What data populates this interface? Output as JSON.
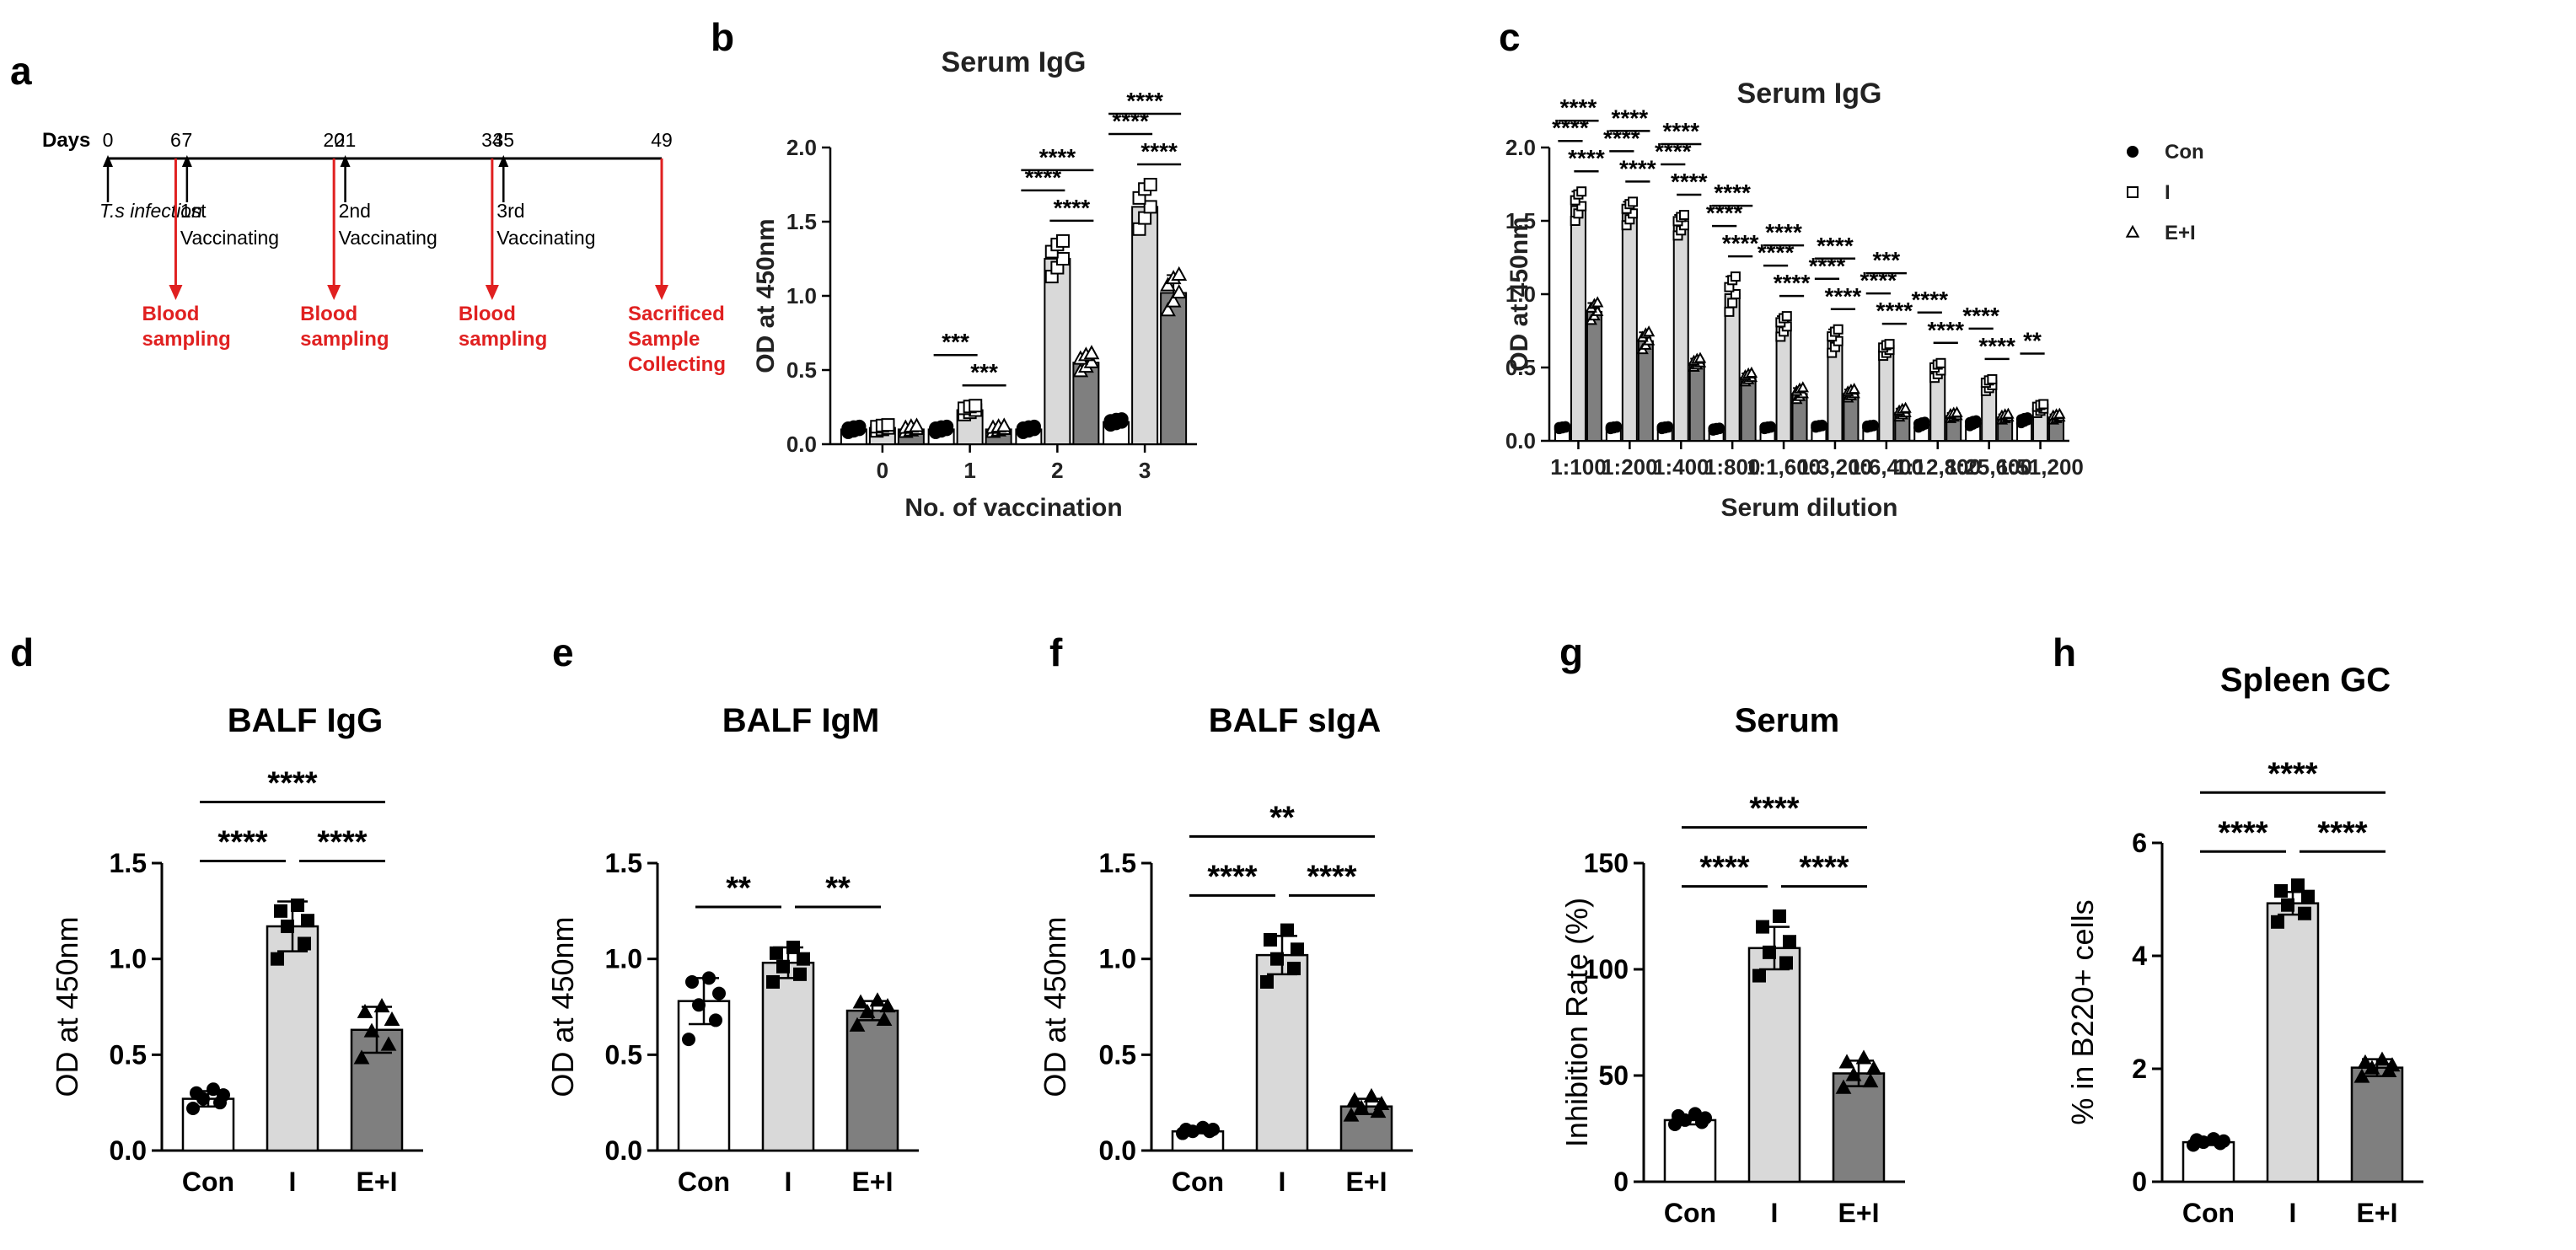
{
  "colors": {
    "con": "#ffffff",
    "i": "#d9d9d9",
    "ei": "#7f7f7f",
    "red": "#e02020",
    "ink": "#000000"
  },
  "panel_a": {
    "label": "a",
    "days_label": "Days",
    "days": [
      "0",
      "6",
      "7",
      "20",
      "21",
      "34",
      "35",
      "49"
    ],
    "day_values": [
      0,
      6,
      7,
      20,
      21,
      34,
      35,
      49
    ],
    "black_events": [
      {
        "day": 0,
        "lines": [
          "T.s infection"
        ]
      },
      {
        "day": 7,
        "lines": [
          "1st",
          "Vaccinating"
        ]
      },
      {
        "day": 21,
        "lines": [
          "2nd",
          "Vaccinating"
        ]
      },
      {
        "day": 35,
        "lines": [
          "3rd",
          "Vaccinating"
        ]
      }
    ],
    "red_events": [
      {
        "day": 6,
        "lines": [
          "Blood",
          "sampling"
        ]
      },
      {
        "day": 20,
        "lines": [
          "Blood",
          "sampling"
        ]
      },
      {
        "day": 34,
        "lines": [
          "Blood",
          "sampling"
        ]
      },
      {
        "day": 49,
        "lines": [
          "Sacrificed",
          "Sample",
          "Collecting"
        ]
      }
    ]
  },
  "chart_data": [
    {
      "panel": "b",
      "type": "bar",
      "title": "Serum IgG",
      "xlabel": "No. of vaccination",
      "ylabel": "OD at 450nm",
      "ylim": [
        0,
        2.0
      ],
      "yticks": [
        "0.0",
        "0.5",
        "1.0",
        "1.5",
        "2.0"
      ],
      "ytick_values": [
        0,
        0.5,
        1.0,
        1.5,
        2.0
      ],
      "categories": [
        "0",
        "1",
        "2",
        "3"
      ],
      "series": [
        {
          "name": "Con",
          "values": [
            0.1,
            0.1,
            0.1,
            0.15
          ],
          "err": [
            0.02,
            0.02,
            0.02,
            0.02
          ]
        },
        {
          "name": "I",
          "values": [
            0.11,
            0.23,
            1.25,
            1.6
          ],
          "err": [
            0.02,
            0.03,
            0.12,
            0.15
          ]
        },
        {
          "name": "E+I",
          "values": [
            0.1,
            0.1,
            0.55,
            1.02
          ],
          "err": [
            0.02,
            0.02,
            0.06,
            0.12
          ]
        }
      ],
      "significance": [
        {
          "cat": 1,
          "from": 0,
          "to": 1,
          "label": "***"
        },
        {
          "cat": 1,
          "from": 1,
          "to": 2,
          "label": "***"
        },
        {
          "cat": 2,
          "from": 0,
          "to": 1,
          "label": "****"
        },
        {
          "cat": 2,
          "from": 1,
          "to": 2,
          "label": "****"
        },
        {
          "cat": 2,
          "from": 0,
          "to": 2,
          "label": "****"
        },
        {
          "cat": 3,
          "from": 0,
          "to": 1,
          "label": "****"
        },
        {
          "cat": 3,
          "from": 1,
          "to": 2,
          "label": "****"
        },
        {
          "cat": 3,
          "from": 0,
          "to": 2,
          "label": "****"
        }
      ]
    },
    {
      "panel": "c",
      "type": "bar",
      "title": "Serum IgG",
      "xlabel": "Serum dilution",
      "ylabel": "OD at 450nm",
      "ylim": [
        0,
        2.0
      ],
      "yticks": [
        "0.0",
        "0.5",
        "1.0",
        "1.5",
        "2.0"
      ],
      "ytick_values": [
        0,
        0.5,
        1.0,
        1.5,
        2.0
      ],
      "categories": [
        "1:100",
        "1:200",
        "1:400",
        "1:800",
        "1:1,600",
        "1:3,200",
        "1:6,400",
        "1:12,800",
        "1:25,600",
        "1:51,200"
      ],
      "series": [
        {
          "name": "Con",
          "values": [
            0.09,
            0.09,
            0.09,
            0.08,
            0.09,
            0.1,
            0.1,
            0.11,
            0.12,
            0.14
          ],
          "err": [
            0.01,
            0.01,
            0.01,
            0.01,
            0.01,
            0.01,
            0.01,
            0.02,
            0.02,
            0.02
          ]
        },
        {
          "name": "I",
          "values": [
            1.6,
            1.55,
            1.47,
            1.0,
            0.78,
            0.68,
            0.62,
            0.48,
            0.38,
            0.22
          ],
          "err": [
            0.1,
            0.08,
            0.07,
            0.12,
            0.07,
            0.08,
            0.04,
            0.05,
            0.04,
            0.03
          ]
        },
        {
          "name": "E+I",
          "values": [
            0.88,
            0.68,
            0.53,
            0.43,
            0.32,
            0.32,
            0.19,
            0.17,
            0.16,
            0.16
          ],
          "err": [
            0.06,
            0.06,
            0.03,
            0.03,
            0.04,
            0.03,
            0.03,
            0.02,
            0.02,
            0.02
          ]
        }
      ],
      "legend": [
        "Con",
        "I",
        "E+I"
      ],
      "legend_position": "top-right",
      "significance": [
        {
          "cat": 0,
          "from": 0,
          "to": 1,
          "label": "****"
        },
        {
          "cat": 0,
          "from": 1,
          "to": 2,
          "label": "****"
        },
        {
          "cat": 0,
          "from": 0,
          "to": 2,
          "label": "****"
        },
        {
          "cat": 1,
          "from": 0,
          "to": 1,
          "label": "****"
        },
        {
          "cat": 1,
          "from": 1,
          "to": 2,
          "label": "****"
        },
        {
          "cat": 1,
          "from": 0,
          "to": 2,
          "label": "****"
        },
        {
          "cat": 2,
          "from": 0,
          "to": 1,
          "label": "****"
        },
        {
          "cat": 2,
          "from": 1,
          "to": 2,
          "label": "****"
        },
        {
          "cat": 2,
          "from": 0,
          "to": 2,
          "label": "****"
        },
        {
          "cat": 3,
          "from": 0,
          "to": 1,
          "label": "****"
        },
        {
          "cat": 3,
          "from": 1,
          "to": 2,
          "label": "****"
        },
        {
          "cat": 3,
          "from": 0,
          "to": 2,
          "label": "****"
        },
        {
          "cat": 4,
          "from": 0,
          "to": 1,
          "label": "****"
        },
        {
          "cat": 4,
          "from": 1,
          "to": 2,
          "label": "****"
        },
        {
          "cat": 4,
          "from": 0,
          "to": 2,
          "label": "****"
        },
        {
          "cat": 5,
          "from": 0,
          "to": 1,
          "label": "****"
        },
        {
          "cat": 5,
          "from": 1,
          "to": 2,
          "label": "****"
        },
        {
          "cat": 5,
          "from": 0,
          "to": 2,
          "label": "****"
        },
        {
          "cat": 6,
          "from": 0,
          "to": 1,
          "label": "****"
        },
        {
          "cat": 6,
          "from": 1,
          "to": 2,
          "label": "****"
        },
        {
          "cat": 6,
          "from": 0,
          "to": 2,
          "label": "***"
        },
        {
          "cat": 7,
          "from": 0,
          "to": 1,
          "label": "****"
        },
        {
          "cat": 7,
          "from": 1,
          "to": 2,
          "label": "****"
        },
        {
          "cat": 8,
          "from": 0,
          "to": 1,
          "label": "****"
        },
        {
          "cat": 8,
          "from": 1,
          "to": 2,
          "label": "****"
        },
        {
          "cat": 9,
          "from": 0,
          "to": 1,
          "label": "**"
        }
      ]
    },
    {
      "panel": "d",
      "type": "bar",
      "title": "BALF IgG",
      "ylabel": "OD at 450nm",
      "ylim": [
        0,
        1.5
      ],
      "yticks": [
        "0.0",
        "0.5",
        "1.0",
        "1.5"
      ],
      "ytick_values": [
        0,
        0.5,
        1.0,
        1.5
      ],
      "categories": [
        "Con",
        "I",
        "E+I"
      ],
      "values": [
        0.27,
        1.17,
        0.63
      ],
      "err": [
        0.04,
        0.13,
        0.12
      ],
      "points": [
        [
          0.22,
          0.25,
          0.27,
          0.29,
          0.3,
          0.32
        ],
        [
          1.0,
          1.08,
          1.17,
          1.2,
          1.25,
          1.28
        ],
        [
          0.48,
          0.55,
          0.62,
          0.68,
          0.72,
          0.75
        ]
      ],
      "significance": [
        {
          "from": 0,
          "to": 1,
          "label": "****"
        },
        {
          "from": 1,
          "to": 2,
          "label": "****"
        },
        {
          "from": 0,
          "to": 2,
          "label": "****"
        }
      ]
    },
    {
      "panel": "e",
      "type": "bar",
      "title": "BALF IgM",
      "ylabel": "OD at 450nm",
      "ylim": [
        0,
        1.5
      ],
      "yticks": [
        "0.0",
        "0.5",
        "1.0",
        "1.5"
      ],
      "ytick_values": [
        0,
        0.5,
        1.0,
        1.5
      ],
      "categories": [
        "Con",
        "I",
        "E+I"
      ],
      "values": [
        0.78,
        0.98,
        0.73
      ],
      "err": [
        0.12,
        0.08,
        0.05
      ],
      "points": [
        [
          0.58,
          0.68,
          0.76,
          0.82,
          0.88,
          0.9
        ],
        [
          0.88,
          0.92,
          0.96,
          1.0,
          1.03,
          1.06
        ],
        [
          0.65,
          0.68,
          0.72,
          0.75,
          0.77,
          0.78
        ]
      ],
      "significance": [
        {
          "from": 0,
          "to": 1,
          "label": "**"
        },
        {
          "from": 1,
          "to": 2,
          "label": "**"
        }
      ]
    },
    {
      "panel": "f",
      "type": "bar",
      "title": "BALF sIgA",
      "ylabel": "OD at 450nm",
      "ylim": [
        0,
        1.5
      ],
      "yticks": [
        "0.0",
        "0.5",
        "1.0",
        "1.5"
      ],
      "ytick_values": [
        0,
        0.5,
        1.0,
        1.5
      ],
      "categories": [
        "Con",
        "I",
        "E+I"
      ],
      "values": [
        0.1,
        1.02,
        0.23
      ],
      "err": [
        0.01,
        0.1,
        0.04
      ],
      "points": [
        [
          0.09,
          0.1,
          0.1,
          0.11,
          0.11,
          0.12
        ],
        [
          0.88,
          0.95,
          1.0,
          1.05,
          1.1,
          1.15
        ],
        [
          0.18,
          0.2,
          0.22,
          0.24,
          0.26,
          0.28
        ]
      ],
      "significance": [
        {
          "from": 0,
          "to": 1,
          "label": "****"
        },
        {
          "from": 1,
          "to": 2,
          "label": "****"
        },
        {
          "from": 0,
          "to": 2,
          "label": "**"
        }
      ]
    },
    {
      "panel": "g",
      "type": "bar",
      "title": "Serum",
      "ylabel": "Inhibition Rate (%)",
      "ylim": [
        0,
        150
      ],
      "yticks": [
        "0",
        "50",
        "100",
        "150"
      ],
      "ytick_values": [
        0,
        50,
        100,
        150
      ],
      "categories": [
        "Con",
        "I",
        "E+I"
      ],
      "values": [
        29,
        110,
        51
      ],
      "err": [
        2,
        10,
        6
      ],
      "points": [
        [
          27,
          28,
          29,
          30,
          31,
          32
        ],
        [
          97,
          103,
          108,
          113,
          120,
          125
        ],
        [
          44,
          47,
          50,
          53,
          56,
          58
        ]
      ],
      "significance": [
        {
          "from": 0,
          "to": 1,
          "label": "****"
        },
        {
          "from": 1,
          "to": 2,
          "label": "****"
        },
        {
          "from": 0,
          "to": 2,
          "label": "****"
        }
      ]
    },
    {
      "panel": "h",
      "type": "bar",
      "title": "Spleen GC",
      "ylabel": "% in B220+ cells",
      "ylim": [
        0,
        6
      ],
      "yticks": [
        "0",
        "2",
        "4",
        "6"
      ],
      "ytick_values": [
        0,
        2,
        4,
        6
      ],
      "categories": [
        "Con",
        "I",
        "E+I"
      ],
      "values": [
        0.7,
        4.93,
        2.02
      ],
      "err": [
        0.05,
        0.2,
        0.15
      ],
      "points": [
        [
          0.65,
          0.68,
          0.7,
          0.72,
          0.74,
          0.76
        ],
        [
          4.6,
          4.75,
          4.9,
          5.05,
          5.15,
          5.25
        ],
        [
          1.85,
          1.95,
          2.0,
          2.05,
          2.1,
          2.15
        ]
      ],
      "significance": [
        {
          "from": 0,
          "to": 1,
          "label": "****"
        },
        {
          "from": 1,
          "to": 2,
          "label": "****"
        },
        {
          "from": 0,
          "to": 2,
          "label": "****"
        }
      ]
    }
  ]
}
